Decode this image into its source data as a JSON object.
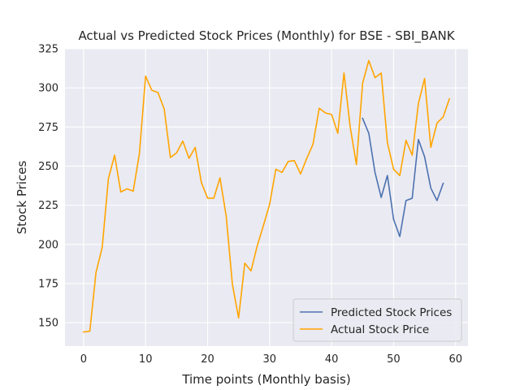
{
  "chart_data": {
    "type": "line",
    "title": "Actual vs Predicted Stock Prices (Monthly) for BSE - SBI_BANK",
    "xlabel": "Time points (Monthly basis)",
    "ylabel": "Stock Prices",
    "xlim": [
      -3,
      62
    ],
    "ylim": [
      135,
      325
    ],
    "xticks": [
      0,
      10,
      20,
      30,
      40,
      50,
      60
    ],
    "yticks": [
      150,
      175,
      200,
      225,
      250,
      275,
      300,
      325
    ],
    "grid": true,
    "legend_position": "lower-right",
    "colors": {
      "background": "#eaeaf2",
      "grid": "#ffffff",
      "predicted": "#4c72b0",
      "actual": "#ffa500"
    },
    "series": [
      {
        "name": "Predicted Stock Prices",
        "color": "#4c72b0",
        "x": [
          45,
          46,
          47,
          48,
          49,
          50,
          51,
          52,
          53,
          54,
          55,
          56,
          57,
          58
        ],
        "values": [
          280.5,
          271,
          246,
          230,
          244,
          216,
          205,
          228,
          229.5,
          267,
          256,
          236,
          228,
          239
        ]
      },
      {
        "name": "Actual Stock Price",
        "color": "#ffa500",
        "x": [
          0,
          1,
          2,
          3,
          4,
          5,
          6,
          7,
          8,
          9,
          10,
          11,
          12,
          13,
          14,
          15,
          16,
          17,
          18,
          19,
          20,
          21,
          22,
          23,
          24,
          25,
          26,
          27,
          28,
          29,
          30,
          31,
          32,
          33,
          34,
          35,
          36,
          37,
          38,
          39,
          40,
          41,
          42,
          43,
          44,
          45,
          46,
          47,
          48,
          49,
          50,
          51,
          52,
          53,
          54,
          55,
          56,
          57,
          58,
          59
        ],
        "values": [
          144,
          144.5,
          182,
          198,
          242,
          257,
          233.5,
          235.5,
          234,
          258,
          307.5,
          298.5,
          297,
          286.5,
          255.5,
          258.5,
          266,
          255,
          262,
          239.5,
          229.5,
          229.5,
          242.5,
          218,
          174.5,
          153,
          188,
          183,
          199,
          212,
          225.5,
          248,
          246,
          253,
          253.5,
          245,
          255,
          264,
          287,
          284,
          283,
          271,
          309.5,
          275,
          251,
          303,
          317.5,
          306.5,
          309.5,
          265,
          248,
          244,
          266.5,
          257,
          290,
          306,
          262,
          277.5,
          281.5,
          293
        ]
      }
    ]
  }
}
